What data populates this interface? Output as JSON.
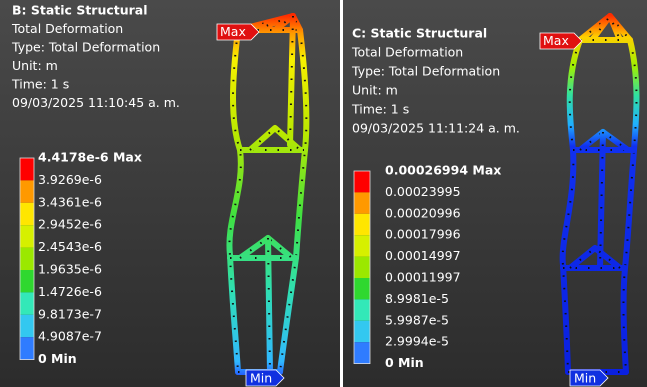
{
  "panels": [
    {
      "title": "B: Static Structural",
      "lines": [
        "Total Deformation",
        "Type: Total Deformation",
        "Unit: m",
        "Time: 1 s",
        "09/03/2025 11:10:45 a. m."
      ],
      "legend": [
        "4.4178e-6 Max",
        "3.9269e-6",
        "3.4361e-6",
        "2.9452e-6",
        "2.4543e-6",
        "1.9635e-6",
        "1.4726e-6",
        "9.8173e-7",
        "4.9087e-7",
        "0 Min"
      ],
      "max_tag": "Max",
      "min_tag": "Min"
    },
    {
      "title": "C: Static Structural",
      "lines": [
        "Total Deformation",
        "Type: Total Deformation",
        "Unit: m",
        "Time: 1 s",
        "09/03/2025 11:11:24 a. m."
      ],
      "legend": [
        "0.00026994 Max",
        "0.00023995",
        "0.00020996",
        "0.00017996",
        "0.00014997",
        "0.00011997",
        "8.9981e-5",
        "5.9987e-5",
        "2.9994e-5",
        "0 Min"
      ],
      "max_tag": "Max",
      "min_tag": "Min"
    }
  ]
}
